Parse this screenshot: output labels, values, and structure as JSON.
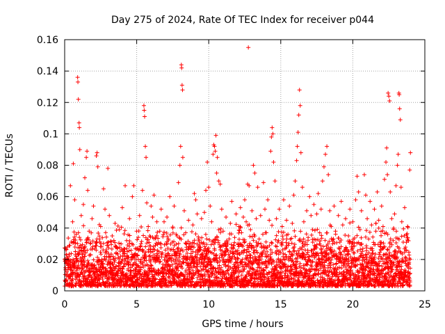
{
  "chart_data": {
    "type": "scatter",
    "title": "Day 275 of 2024, Rate Of TEC Index for receiver p044",
    "xlabel": "GPS time / hours",
    "ylabel": "ROTI / TECUs",
    "xlim": [
      0,
      25
    ],
    "ylim": [
      0,
      0.16
    ],
    "xticks": [
      0,
      5,
      10,
      15,
      20,
      25
    ],
    "xtick_labels": [
      "0",
      "5",
      "10",
      "15",
      "20",
      "25"
    ],
    "yticks": [
      0,
      0.02,
      0.04,
      0.06,
      0.08,
      0.1,
      0.12,
      0.14,
      0.16
    ],
    "ytick_labels": [
      "0",
      "0.02",
      "0.04",
      "0.06",
      "0.08",
      "0.1",
      "0.12",
      "0.14",
      "0.16"
    ],
    "grid": true,
    "marker": "+",
    "color": "#ff0000",
    "series": [
      {
        "name": "ROTI",
        "points": [
          [
            0.05,
            0.006
          ],
          [
            0.1,
            0.018
          ],
          [
            0.15,
            0.012
          ],
          [
            0.2,
            0.028
          ],
          [
            0.25,
            0.009
          ],
          [
            0.3,
            0.022
          ],
          [
            0.35,
            0.015
          ],
          [
            0.4,
            0.067
          ],
          [
            0.45,
            0.031
          ],
          [
            0.5,
            0.011
          ],
          [
            0.55,
            0.044
          ],
          [
            0.6,
            0.081
          ],
          [
            0.65,
            0.019
          ],
          [
            0.7,
            0.058
          ],
          [
            0.75,
            0.025
          ],
          [
            0.8,
            0.036
          ],
          [
            0.85,
            0.014
          ],
          [
            0.9,
            0.136
          ],
          [
            0.92,
            0.133
          ],
          [
            0.95,
            0.122
          ],
          [
            1.0,
            0.107
          ],
          [
            1.02,
            0.104
          ],
          [
            1.05,
            0.09
          ],
          [
            1.1,
            0.029
          ],
          [
            1.15,
            0.048
          ],
          [
            1.2,
            0.017
          ],
          [
            1.3,
            0.055
          ],
          [
            1.4,
            0.072
          ],
          [
            1.5,
            0.085
          ],
          [
            1.55,
            0.089
          ],
          [
            1.6,
            0.064
          ],
          [
            1.7,
            0.038
          ],
          [
            1.8,
            0.023
          ],
          [
            1.9,
            0.046
          ],
          [
            2.0,
            0.054
          ],
          [
            2.1,
            0.027
          ],
          [
            2.2,
            0.086
          ],
          [
            2.25,
            0.088
          ],
          [
            2.3,
            0.079
          ],
          [
            2.4,
            0.033
          ],
          [
            2.5,
            0.041
          ],
          [
            2.6,
            0.019
          ],
          [
            2.7,
            0.065
          ],
          [
            2.8,
            0.052
          ],
          [
            2.9,
            0.013
          ],
          [
            3.0,
            0.078
          ],
          [
            3.1,
            0.048
          ],
          [
            3.2,
            0.022
          ],
          [
            3.3,
            0.035
          ],
          [
            3.4,
            0.015
          ],
          [
            3.5,
            0.043
          ],
          [
            3.6,
            0.028
          ],
          [
            3.7,
            0.011
          ],
          [
            3.8,
            0.039
          ],
          [
            3.9,
            0.018
          ],
          [
            4.0,
            0.053
          ],
          [
            4.1,
            0.024
          ],
          [
            4.2,
            0.067
          ],
          [
            4.3,
            0.032
          ],
          [
            4.4,
            0.014
          ],
          [
            4.5,
            0.046
          ],
          [
            4.6,
            0.021
          ],
          [
            4.7,
            0.06
          ],
          [
            4.8,
            0.067
          ],
          [
            4.9,
            0.027
          ],
          [
            5.0,
            0.038
          ],
          [
            5.1,
            0.016
          ],
          [
            5.2,
            0.048
          ],
          [
            5.3,
            0.03
          ],
          [
            5.4,
            0.064
          ],
          [
            5.5,
            0.118
          ],
          [
            5.52,
            0.115
          ],
          [
            5.55,
            0.111
          ],
          [
            5.6,
            0.092
          ],
          [
            5.65,
            0.085
          ],
          [
            5.7,
            0.056
          ],
          [
            5.8,
            0.041
          ],
          [
            5.9,
            0.035
          ],
          [
            6.0,
            0.054
          ],
          [
            6.1,
            0.047
          ],
          [
            6.2,
            0.061
          ],
          [
            6.3,
            0.029
          ],
          [
            6.4,
            0.044
          ],
          [
            6.5,
            0.02
          ],
          [
            6.6,
            0.038
          ],
          [
            6.7,
            0.052
          ],
          [
            6.8,
            0.015
          ],
          [
            6.9,
            0.044
          ],
          [
            7.0,
            0.026
          ],
          [
            7.1,
            0.047
          ],
          [
            7.2,
            0.033
          ],
          [
            7.3,
            0.06
          ],
          [
            7.4,
            0.019
          ],
          [
            7.5,
            0.04
          ],
          [
            7.6,
            0.054
          ],
          [
            7.7,
            0.023
          ],
          [
            7.8,
            0.035
          ],
          [
            7.9,
            0.069
          ],
          [
            8.0,
            0.08
          ],
          [
            8.05,
            0.092
          ],
          [
            8.1,
            0.144
          ],
          [
            8.12,
            0.142
          ],
          [
            8.15,
            0.131
          ],
          [
            8.18,
            0.128
          ],
          [
            8.2,
            0.085
          ],
          [
            8.3,
            0.051
          ],
          [
            8.4,
            0.037
          ],
          [
            8.5,
            0.024
          ],
          [
            8.6,
            0.045
          ],
          [
            8.7,
            0.03
          ],
          [
            8.8,
            0.018
          ],
          [
            8.9,
            0.042
          ],
          [
            9.0,
            0.062
          ],
          [
            9.1,
            0.058
          ],
          [
            9.2,
            0.049
          ],
          [
            9.3,
            0.033
          ],
          [
            9.4,
            0.021
          ],
          [
            9.5,
            0.046
          ],
          [
            9.6,
            0.03
          ],
          [
            9.7,
            0.05
          ],
          [
            9.8,
            0.064
          ],
          [
            9.9,
            0.082
          ],
          [
            10.0,
            0.066
          ],
          [
            10.1,
            0.054
          ],
          [
            10.2,
            0.044
          ],
          [
            10.3,
            0.087
          ],
          [
            10.35,
            0.093
          ],
          [
            10.4,
            0.092
          ],
          [
            10.45,
            0.089
          ],
          [
            10.5,
            0.099
          ],
          [
            10.55,
            0.075
          ],
          [
            10.6,
            0.085
          ],
          [
            10.7,
            0.07
          ],
          [
            10.8,
            0.068
          ],
          [
            10.9,
            0.052
          ],
          [
            11.0,
            0.038
          ],
          [
            11.1,
            0.024
          ],
          [
            11.2,
            0.047
          ],
          [
            11.3,
            0.031
          ],
          [
            11.4,
            0.019
          ],
          [
            11.5,
            0.043
          ],
          [
            11.6,
            0.057
          ],
          [
            11.7,
            0.027
          ],
          [
            11.8,
            0.034
          ],
          [
            11.9,
            0.049
          ],
          [
            12.0,
            0.018
          ],
          [
            12.1,
            0.041
          ],
          [
            12.2,
            0.053
          ],
          [
            12.3,
            0.029
          ],
          [
            12.4,
            0.047
          ],
          [
            12.5,
            0.058
          ],
          [
            12.6,
            0.044
          ],
          [
            12.7,
            0.068
          ],
          [
            12.75,
            0.155
          ],
          [
            12.8,
            0.067
          ],
          [
            12.9,
            0.039
          ],
          [
            13.0,
            0.051
          ],
          [
            13.1,
            0.08
          ],
          [
            13.2,
            0.075
          ],
          [
            13.3,
            0.046
          ],
          [
            13.4,
            0.066
          ],
          [
            13.5,
            0.033
          ],
          [
            13.6,
            0.048
          ],
          [
            13.7,
            0.022
          ],
          [
            13.8,
            0.069
          ],
          [
            13.9,
            0.052
          ],
          [
            14.0,
            0.037
          ],
          [
            14.1,
            0.058
          ],
          [
            14.2,
            0.045
          ],
          [
            14.3,
            0.089
          ],
          [
            14.35,
            0.098
          ],
          [
            14.4,
            0.104
          ],
          [
            14.45,
            0.1
          ],
          [
            14.5,
            0.082
          ],
          [
            14.6,
            0.07
          ],
          [
            14.7,
            0.046
          ],
          [
            14.8,
            0.031
          ],
          [
            14.9,
            0.052
          ],
          [
            15.0,
            0.019
          ],
          [
            15.1,
            0.041
          ],
          [
            15.2,
            0.058
          ],
          [
            15.3,
            0.027
          ],
          [
            15.4,
            0.045
          ],
          [
            15.5,
            0.036
          ],
          [
            15.6,
            0.054
          ],
          [
            15.7,
            0.022
          ],
          [
            15.8,
            0.043
          ],
          [
            15.9,
            0.061
          ],
          [
            16.0,
            0.07
          ],
          [
            16.1,
            0.083
          ],
          [
            16.15,
            0.092
          ],
          [
            16.2,
            0.101
          ],
          [
            16.25,
            0.112
          ],
          [
            16.3,
            0.128
          ],
          [
            16.35,
            0.118
          ],
          [
            16.4,
            0.088
          ],
          [
            16.5,
            0.066
          ],
          [
            16.6,
            0.044
          ],
          [
            16.7,
            0.026
          ],
          [
            16.8,
            0.051
          ],
          [
            16.9,
            0.034
          ],
          [
            17.0,
            0.06
          ],
          [
            17.1,
            0.048
          ],
          [
            17.2,
            0.039
          ],
          [
            17.3,
            0.055
          ],
          [
            17.4,
            0.028
          ],
          [
            17.5,
            0.049
          ],
          [
            17.6,
            0.062
          ],
          [
            17.7,
            0.037
          ],
          [
            17.8,
            0.052
          ],
          [
            17.9,
            0.07
          ],
          [
            18.0,
            0.079
          ],
          [
            18.1,
            0.087
          ],
          [
            18.2,
            0.092
          ],
          [
            18.3,
            0.074
          ],
          [
            18.4,
            0.051
          ],
          [
            18.5,
            0.041
          ],
          [
            18.6,
            0.03
          ],
          [
            18.7,
            0.054
          ],
          [
            18.8,
            0.038
          ],
          [
            18.9,
            0.022
          ],
          [
            19.0,
            0.048
          ],
          [
            19.1,
            0.031
          ],
          [
            19.2,
            0.057
          ],
          [
            19.3,
            0.042
          ],
          [
            19.4,
            0.025
          ],
          [
            19.5,
            0.046
          ],
          [
            19.6,
            0.019
          ],
          [
            19.7,
            0.035
          ],
          [
            19.8,
            0.052
          ],
          [
            19.9,
            0.028
          ],
          [
            20.0,
            0.044
          ],
          [
            20.1,
            0.021
          ],
          [
            20.2,
            0.058
          ],
          [
            20.3,
            0.073
          ],
          [
            20.4,
            0.063
          ],
          [
            20.5,
            0.039
          ],
          [
            20.6,
            0.051
          ],
          [
            20.7,
            0.027
          ],
          [
            20.8,
            0.074
          ],
          [
            20.9,
            0.061
          ],
          [
            21.0,
            0.046
          ],
          [
            21.1,
            0.033
          ],
          [
            21.2,
            0.057
          ],
          [
            21.3,
            0.042
          ],
          [
            21.4,
            0.024
          ],
          [
            21.5,
            0.052
          ],
          [
            21.6,
            0.038
          ],
          [
            21.7,
            0.063
          ],
          [
            21.8,
            0.045
          ],
          [
            21.9,
            0.031
          ],
          [
            22.0,
            0.054
          ],
          [
            22.1,
            0.041
          ],
          [
            22.2,
            0.071
          ],
          [
            22.3,
            0.082
          ],
          [
            22.35,
            0.091
          ],
          [
            22.4,
            0.074
          ],
          [
            22.45,
            0.126
          ],
          [
            22.5,
            0.124
          ],
          [
            22.55,
            0.121
          ],
          [
            22.6,
            0.063
          ],
          [
            22.7,
            0.046
          ],
          [
            22.8,
            0.032
          ],
          [
            22.9,
            0.049
          ],
          [
            23.0,
            0.067
          ],
          [
            23.1,
            0.08
          ],
          [
            23.15,
            0.087
          ],
          [
            23.2,
            0.126
          ],
          [
            23.22,
            0.125
          ],
          [
            23.25,
            0.116
          ],
          [
            23.3,
            0.109
          ],
          [
            23.35,
            0.066
          ],
          [
            23.4,
            0.044
          ],
          [
            23.5,
            0.031
          ],
          [
            23.6,
            0.053
          ],
          [
            23.7,
            0.026
          ],
          [
            23.8,
            0.041
          ],
          [
            23.9,
            0.018
          ],
          [
            23.95,
            0.077
          ],
          [
            24.0,
            0.088
          ]
        ]
      }
    ],
    "dense_band": {
      "description": "bulk of observations",
      "x_range": [
        0,
        24
      ],
      "floor": 0.003,
      "typical_top": 0.03
    }
  }
}
